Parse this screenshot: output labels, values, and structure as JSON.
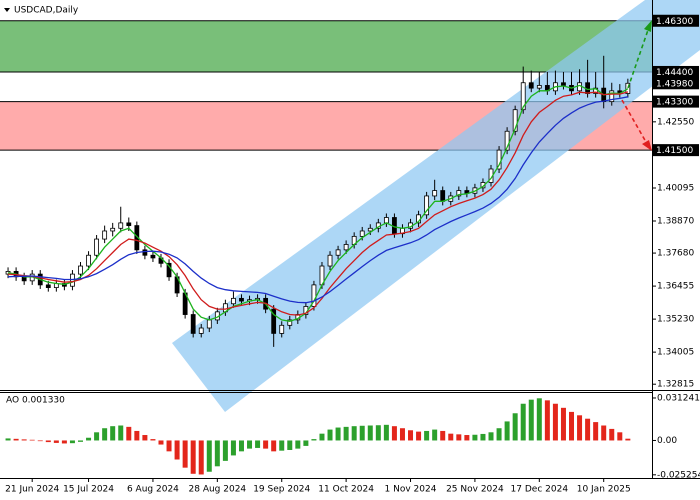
{
  "chart_data": {
    "type": "candlestick",
    "title": "USDCAD,Daily",
    "xlim": [
      -1,
      80
    ],
    "xticks": [
      {
        "value": 3,
        "label": "21 Jun 2024"
      },
      {
        "value": 10,
        "label": "15 Jul 2024"
      },
      {
        "value": 18,
        "label": "6 Aug 2024"
      },
      {
        "value": 26,
        "label": "28 Aug 2024"
      },
      {
        "value": 34,
        "label": "19 Sep 2024"
      },
      {
        "value": 42,
        "label": "11 Oct 2024"
      },
      {
        "value": 50,
        "label": "1 Nov 2024"
      },
      {
        "value": 58,
        "label": "25 Nov 2024"
      },
      {
        "value": 66,
        "label": "17 Dec 2024"
      },
      {
        "value": 74,
        "label": "10 Jan 2025"
      }
    ],
    "ylim": [
      1.326,
      1.4707
    ],
    "yticks": [
      {
        "value": 1.4255,
        "label": "1.42550"
      },
      1.40095,
      {
        "value": 1.3887,
        "label": "1.38870"
      },
      {
        "value": 1.3768,
        "label": "1.37680"
      },
      1.36455,
      {
        "value": 1.3523,
        "label": "1.35230"
      },
      1.34005,
      1.32815
    ],
    "zones": [
      {
        "top": {
          "value": 1.463,
          "label": "1.46300"
        },
        "bottom": {
          "value": 1.444,
          "label": "1.44400"
        },
        "color": "#4caa4c"
      },
      {
        "top": {
          "value": 1.433,
          "label": "1.43300"
        },
        "bottom": {
          "value": 1.415,
          "label": "1.41500"
        },
        "color": "#ff8f8f"
      }
    ],
    "current_price": {
      "value": 1.4398,
      "label": "1.43980"
    },
    "up_color": "#ffffff",
    "down_color": "#000000",
    "candles": [
      [
        1.369,
        1.3715,
        1.3675,
        1.37
      ],
      [
        1.37,
        1.3715,
        1.3665,
        1.368
      ],
      [
        1.368,
        1.3695,
        1.365,
        1.3665
      ],
      [
        1.3665,
        1.3705,
        1.365,
        1.369
      ],
      [
        1.369,
        1.3705,
        1.3635,
        1.365
      ],
      [
        1.365,
        1.3665,
        1.3625,
        1.364
      ],
      [
        1.364,
        1.367,
        1.3625,
        1.3655
      ],
      [
        1.3655,
        1.367,
        1.363,
        1.3645
      ],
      [
        1.3645,
        1.3705,
        1.363,
        1.369
      ],
      [
        1.369,
        1.3735,
        1.3675,
        1.372
      ],
      [
        1.372,
        1.3775,
        1.3705,
        1.376
      ],
      [
        1.376,
        1.3835,
        1.3745,
        1.382
      ],
      [
        1.382,
        1.387,
        1.3805,
        1.385
      ],
      [
        1.385,
        1.388,
        1.383,
        1.386
      ],
      [
        1.386,
        1.394,
        1.3845,
        1.388
      ],
      [
        1.388,
        1.39,
        1.385,
        1.387
      ],
      [
        1.387,
        1.3885,
        1.3765,
        1.378
      ],
      [
        1.378,
        1.3795,
        1.3745,
        1.376
      ],
      [
        1.376,
        1.3775,
        1.3735,
        1.375
      ],
      [
        1.375,
        1.3765,
        1.3715,
        1.373
      ],
      [
        1.373,
        1.3745,
        1.3665,
        1.368
      ],
      [
        1.368,
        1.3695,
        1.3605,
        1.362
      ],
      [
        1.362,
        1.3635,
        1.3525,
        1.354
      ],
      [
        1.354,
        1.3555,
        1.3455,
        1.347
      ],
      [
        1.347,
        1.3505,
        1.3455,
        1.349
      ],
      [
        1.349,
        1.3535,
        1.3475,
        1.352
      ],
      [
        1.352,
        1.3565,
        1.3505,
        1.355
      ],
      [
        1.355,
        1.3595,
        1.3535,
        1.358
      ],
      [
        1.358,
        1.3625,
        1.3565,
        1.36
      ],
      [
        1.36,
        1.3615,
        1.3575,
        1.359
      ],
      [
        1.359,
        1.361,
        1.3575,
        1.3595
      ],
      [
        1.3595,
        1.3615,
        1.358,
        1.36
      ],
      [
        1.36,
        1.3615,
        1.3545,
        1.356
      ],
      [
        1.356,
        1.3575,
        1.342,
        1.347
      ],
      [
        1.347,
        1.3515,
        1.3455,
        1.35
      ],
      [
        1.35,
        1.3535,
        1.3485,
        1.352
      ],
      [
        1.352,
        1.3555,
        1.3505,
        1.354
      ],
      [
        1.354,
        1.3585,
        1.3525,
        1.357
      ],
      [
        1.357,
        1.3665,
        1.3555,
        1.365
      ],
      [
        1.365,
        1.3735,
        1.3635,
        1.372
      ],
      [
        1.372,
        1.3775,
        1.3705,
        1.376
      ],
      [
        1.376,
        1.3795,
        1.3745,
        1.378
      ],
      [
        1.378,
        1.3815,
        1.3765,
        1.38
      ],
      [
        1.38,
        1.3845,
        1.3785,
        1.383
      ],
      [
        1.383,
        1.3865,
        1.3815,
        1.385
      ],
      [
        1.385,
        1.3875,
        1.3835,
        1.386
      ],
      [
        1.386,
        1.3895,
        1.3845,
        1.388
      ],
      [
        1.388,
        1.3915,
        1.3865,
        1.39
      ],
      [
        1.39,
        1.3915,
        1.3825,
        1.384
      ],
      [
        1.384,
        1.3875,
        1.3825,
        1.386
      ],
      [
        1.386,
        1.3895,
        1.3845,
        1.388
      ],
      [
        1.388,
        1.3925,
        1.3865,
        1.391
      ],
      [
        1.391,
        1.3995,
        1.3895,
        1.398
      ],
      [
        1.398,
        1.404,
        1.3965,
        1.4
      ],
      [
        1.4,
        1.4015,
        1.3945,
        1.396
      ],
      [
        1.396,
        1.3995,
        1.3945,
        1.398
      ],
      [
        1.398,
        1.4015,
        1.3965,
        1.4
      ],
      [
        1.4,
        1.4015,
        1.3975,
        1.399
      ],
      [
        1.399,
        1.4025,
        1.3975,
        1.401
      ],
      [
        1.401,
        1.4045,
        1.3995,
        1.403
      ],
      [
        1.403,
        1.4095,
        1.4015,
        1.408
      ],
      [
        1.408,
        1.4165,
        1.4065,
        1.415
      ],
      [
        1.415,
        1.4235,
        1.4135,
        1.422
      ],
      [
        1.422,
        1.4315,
        1.4205,
        1.43
      ],
      [
        1.43,
        1.446,
        1.4285,
        1.44
      ],
      [
        1.44,
        1.4445,
        1.4365,
        1.438
      ],
      [
        1.438,
        1.444,
        1.4365,
        1.439
      ],
      [
        1.439,
        1.444,
        1.4355,
        1.437
      ],
      [
        1.437,
        1.4445,
        1.4355,
        1.44
      ],
      [
        1.44,
        1.444,
        1.4375,
        1.439
      ],
      [
        1.439,
        1.444,
        1.4355,
        1.437
      ],
      [
        1.437,
        1.445,
        1.4355,
        1.44
      ],
      [
        1.44,
        1.4485,
        1.4345,
        1.436
      ],
      [
        1.436,
        1.444,
        1.4345,
        1.438
      ],
      [
        1.438,
        1.45,
        1.4305,
        1.433
      ],
      [
        1.433,
        1.44,
        1.4315,
        1.437
      ],
      [
        1.437,
        1.4395,
        1.4345,
        1.436
      ],
      [
        1.436,
        1.4415,
        1.4345,
        1.4398
      ]
    ],
    "series": [
      {
        "color": "#1db31d",
        "values": [
          1.3695,
          1.369,
          1.368,
          1.368,
          1.367,
          1.366,
          1.3655,
          1.3652,
          1.366,
          1.368,
          1.371,
          1.375,
          1.379,
          1.382,
          1.385,
          1.386,
          1.383,
          1.38,
          1.3775,
          1.375,
          1.372,
          1.368,
          1.362,
          1.356,
          1.353,
          1.352,
          1.353,
          1.355,
          1.357,
          1.358,
          1.359,
          1.3595,
          1.358,
          1.354,
          1.352,
          1.3515,
          1.3525,
          1.3545,
          1.359,
          1.365,
          1.37,
          1.374,
          1.377,
          1.38,
          1.3825,
          1.3845,
          1.3865,
          1.388,
          1.3865,
          1.386,
          1.3865,
          1.3885,
          1.3925,
          1.396,
          1.396,
          1.397,
          1.3985,
          1.3988,
          1.3998,
          1.4015,
          1.4045,
          1.4095,
          1.416,
          1.423,
          1.431,
          1.435,
          1.437,
          1.437,
          1.4385,
          1.4388,
          1.438,
          1.439,
          1.4375,
          1.4378,
          1.4355,
          1.4362,
          1.436,
          1.4378
        ]
      },
      {
        "color": "#d01c1c",
        "values": [
          1.369,
          1.3688,
          1.3684,
          1.3682,
          1.3676,
          1.367,
          1.3665,
          1.366,
          1.3662,
          1.367,
          1.3685,
          1.371,
          1.374,
          1.377,
          1.38,
          1.382,
          1.3815,
          1.3805,
          1.379,
          1.3775,
          1.3755,
          1.3725,
          1.3685,
          1.3635,
          1.3595,
          1.357,
          1.356,
          1.356,
          1.3568,
          1.3574,
          1.358,
          1.3585,
          1.3582,
          1.3565,
          1.355,
          1.354,
          1.3538,
          1.3545,
          1.3565,
          1.36,
          1.364,
          1.3675,
          1.371,
          1.374,
          1.377,
          1.3795,
          1.3815,
          1.3835,
          1.3838,
          1.3842,
          1.3848,
          1.386,
          1.3885,
          1.391,
          1.3925,
          1.394,
          1.3952,
          1.3962,
          1.3972,
          1.3985,
          1.4005,
          1.404,
          1.4085,
          1.414,
          1.4205,
          1.4255,
          1.429,
          1.4312,
          1.4335,
          1.435,
          1.4355,
          1.4365,
          1.4362,
          1.4365,
          1.4356,
          1.4358,
          1.4358,
          1.4366
        ]
      },
      {
        "color": "#1c2fc9",
        "values": [
          1.368,
          1.3682,
          1.3682,
          1.3683,
          1.368,
          1.3677,
          1.3674,
          1.367,
          1.367,
          1.3673,
          1.368,
          1.3692,
          1.3708,
          1.3725,
          1.3745,
          1.3762,
          1.377,
          1.3774,
          1.3775,
          1.3772,
          1.3764,
          1.375,
          1.3728,
          1.37,
          1.3675,
          1.3655,
          1.364,
          1.3632,
          1.3628,
          1.3626,
          1.3624,
          1.3622,
          1.3618,
          1.3608,
          1.3598,
          1.359,
          1.3585,
          1.3584,
          1.359,
          1.3605,
          1.3625,
          1.3648,
          1.3672,
          1.3695,
          1.3718,
          1.374,
          1.376,
          1.3778,
          1.3788,
          1.3797,
          1.3806,
          1.3818,
          1.3835,
          1.3855,
          1.387,
          1.3885,
          1.3898,
          1.391,
          1.3922,
          1.3935,
          1.3952,
          1.3975,
          1.4005,
          1.4045,
          1.4095,
          1.414,
          1.418,
          1.4212,
          1.4242,
          1.4268,
          1.4288,
          1.4306,
          1.4318,
          1.4328,
          1.4332,
          1.4338,
          1.4342,
          1.4348
        ]
      }
    ],
    "indicator": {
      "type": "bar",
      "label": "AO 0.001330",
      "ylim": [
        -0.0276,
        0.0349
      ],
      "yticks": [
        0.031241,
        {
          "value": 0,
          "label": "0.00"
        },
        -0.025254
      ],
      "up_color": "#2ca02c",
      "down_color": "#e3261b",
      "values": [
        0.0015,
        0.0012,
        0.0008,
        0.0005,
        -0.0005,
        -0.0012,
        -0.0018,
        -0.0022,
        -0.002,
        -0.001,
        0.002,
        0.006,
        0.009,
        0.0105,
        0.011,
        0.01,
        0.007,
        0.004,
        0.001,
        -0.003,
        -0.008,
        -0.014,
        -0.02,
        -0.0245,
        -0.025,
        -0.023,
        -0.019,
        -0.015,
        -0.011,
        -0.008,
        -0.006,
        -0.0055,
        -0.006,
        -0.008,
        -0.0075,
        -0.007,
        -0.006,
        -0.004,
        0.001,
        0.005,
        0.008,
        0.0095,
        0.01,
        0.0105,
        0.0108,
        0.011,
        0.0112,
        0.0115,
        0.0105,
        0.009,
        0.0075,
        0.0065,
        0.007,
        0.008,
        0.007,
        0.005,
        0.0045,
        0.004,
        0.0042,
        0.0048,
        0.006,
        0.009,
        0.014,
        0.02,
        0.027,
        0.03,
        0.031,
        0.0295,
        0.027,
        0.024,
        0.021,
        0.0185,
        0.016,
        0.0135,
        0.011,
        0.0085,
        0.006,
        0.0013
      ]
    }
  }
}
